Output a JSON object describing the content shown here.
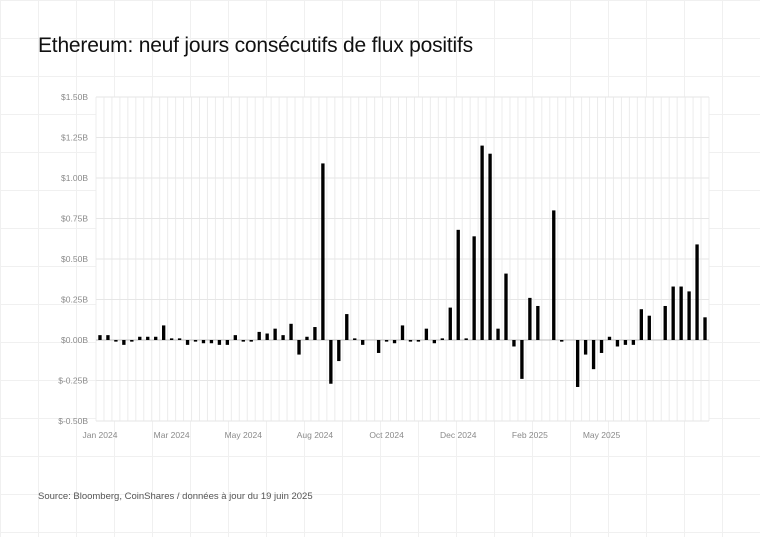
{
  "chart_data": {
    "type": "bar",
    "title": "Ethereum: neuf jours consécutifs de flux positifs",
    "source": "Source: Bloomberg, CoinShares / données à jour du 19 juin 2025",
    "xlabel": "",
    "ylabel": "",
    "unit": "USD billions (weekly flows)",
    "ylim": [
      -0.5,
      1.5
    ],
    "y_ticks": [
      {
        "value": -0.5,
        "label": "$-0.50B"
      },
      {
        "value": -0.25,
        "label": "$-0.25B"
      },
      {
        "value": 0.0,
        "label": "$0.00B"
      },
      {
        "value": 0.25,
        "label": "$0.25B"
      },
      {
        "value": 0.5,
        "label": "$0.50B"
      },
      {
        "value": 0.75,
        "label": "$0.75B"
      },
      {
        "value": 1.0,
        "label": "$1.00B"
      },
      {
        "value": 1.25,
        "label": "$1.25B"
      },
      {
        "value": 1.5,
        "label": "$1.50B"
      }
    ],
    "x_ticks": [
      {
        "index": 0,
        "label": "Jan 2024"
      },
      {
        "index": 9,
        "label": "Mar 2024"
      },
      {
        "index": 18,
        "label": "May 2024"
      },
      {
        "index": 27,
        "label": "Aug 2024"
      },
      {
        "index": 36,
        "label": "Oct 2024"
      },
      {
        "index": 45,
        "label": "Dec 2024"
      },
      {
        "index": 54,
        "label": "Feb 2025"
      },
      {
        "index": 63,
        "label": "May 2025"
      }
    ],
    "grid": true,
    "series": [
      {
        "color": "#000000",
        "values": [
          0.03,
          0.03,
          -0.01,
          -0.03,
          -0.01,
          0.02,
          0.02,
          0.02,
          0.09,
          0.01,
          0.01,
          -0.03,
          -0.01,
          -0.02,
          -0.02,
          -0.03,
          -0.03,
          0.03,
          -0.01,
          -0.01,
          0.05,
          0.04,
          0.07,
          0.03,
          0.1,
          -0.09,
          0.02,
          0.08,
          1.09,
          -0.27,
          -0.13,
          0.16,
          0.01,
          -0.03,
          0.0,
          -0.08,
          -0.01,
          -0.02,
          0.09,
          -0.01,
          -0.01,
          0.07,
          -0.02,
          0.01,
          0.2,
          0.68,
          0.01,
          0.64,
          1.2,
          1.15,
          0.07,
          0.41,
          -0.04,
          -0.24,
          0.26,
          0.21,
          0.0,
          0.8,
          -0.01,
          0.0,
          -0.29,
          -0.09,
          -0.18,
          -0.08,
          0.02,
          -0.04,
          -0.03,
          -0.03,
          0.19,
          0.15,
          0.0,
          0.21,
          0.33,
          0.33,
          0.3,
          0.59,
          0.14
        ]
      }
    ]
  }
}
